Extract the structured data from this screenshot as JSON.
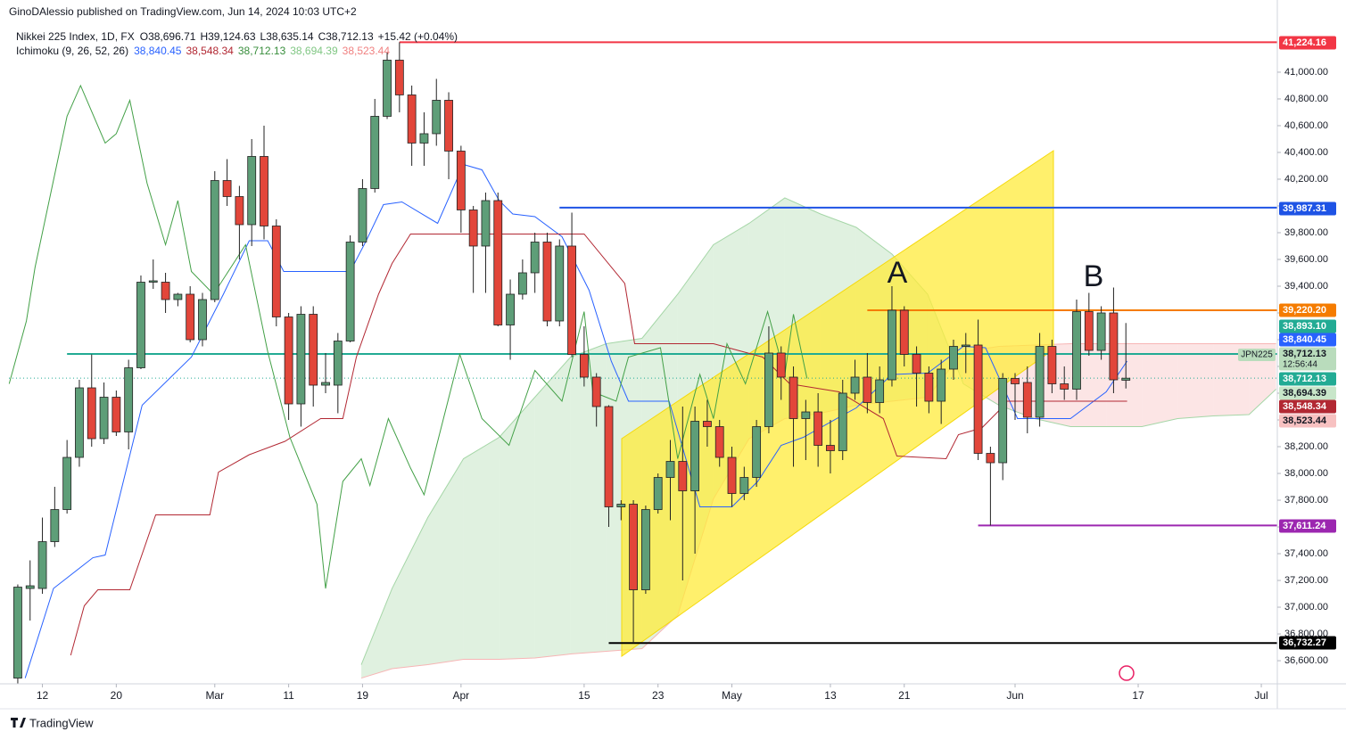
{
  "header": {
    "author": "GinoDAlessio published on TradingView.com, Jun 14, 2024 10:03 UTC+2"
  },
  "footer": "TradingView",
  "chart_data": {
    "type": "candlestick",
    "title": "Nikkei 225 Index, 1D, FX",
    "legend_values": [
      "O38,696.71",
      "H39,124.63",
      "L38,635.14",
      "C38,712.13",
      "+15.42 (+0.04%)"
    ],
    "indicator": {
      "title": "Ichimoku (9, 26, 52, 26)",
      "values": [
        {
          "label": "38,840.45",
          "color": "#2962ff"
        },
        {
          "label": "38,548.34",
          "color": "#b22833"
        },
        {
          "label": "38,712.13",
          "color": "#388e3c"
        },
        {
          "label": "38,694.39",
          "color": "#81c784"
        },
        {
          "label": "38,523.44",
          "color": "#f08080"
        }
      ]
    },
    "up_color": "#5e9e78",
    "down_color": "#e2463a",
    "open": [
      36470,
      37140,
      37140,
      37490,
      37730,
      38120,
      38640,
      38260,
      38570,
      38310,
      38790,
      39430,
      39430,
      39300,
      39340,
      39000,
      39300,
      40190,
      40070,
      39860,
      40370,
      39850,
      39170,
      38520,
      39190,
      38660,
      38660,
      38990,
      39730,
      40130,
      40670,
      41090,
      40830,
      40470,
      40540,
      40790,
      40410,
      39970,
      39700,
      40040,
      39110,
      39340,
      39500,
      39730,
      39140,
      39700,
      38890,
      38720,
      38500,
      37750,
      37770,
      37130,
      37730,
      37970,
      38090,
      37870,
      38390,
      38350,
      38120,
      37850,
      37970,
      38350,
      38900,
      38720,
      38410,
      38460,
      38210,
      38170,
      38600,
      38720,
      38530,
      38700,
      39220,
      38890,
      38750,
      38540,
      38780,
      38950,
      38960,
      38150,
      38080,
      38710,
      38680,
      38420,
      38950,
      38670,
      38630,
      39210,
      38920,
      39200,
      38696.71
    ],
    "high": [
      37170,
      37350,
      37670,
      37900,
      38250,
      38700,
      38890,
      38680,
      38620,
      38850,
      39480,
      39600,
      39500,
      39350,
      39400,
      39350,
      40260,
      40350,
      40150,
      40500,
      40600,
      39900,
      39200,
      39250,
      39250,
      38900,
      39050,
      39780,
      40200,
      40800,
      41150,
      41224.16,
      40900,
      40700,
      40950,
      40850,
      40450,
      40000,
      40100,
      40100,
      39450,
      39600,
      39800,
      39800,
      39750,
      39950,
      39100,
      38750,
      38510,
      37800,
      37800,
      37760,
      38000,
      38250,
      38500,
      38500,
      38550,
      38400,
      38200,
      38050,
      38400,
      39100,
      38950,
      38800,
      38550,
      38600,
      38400,
      38700,
      38850,
      38900,
      38800,
      39400,
      39250,
      38950,
      38800,
      38850,
      39000,
      39050,
      39150,
      38200,
      38750,
      38750,
      38800,
      39050,
      39000,
      38800,
      39300,
      39350,
      39250,
      39390,
      39124.63
    ],
    "low": [
      36430,
      36900,
      37100,
      37450,
      37700,
      38050,
      38200,
      38220,
      38280,
      38180,
      38780,
      39380,
      39200,
      39250,
      38980,
      38950,
      39280,
      40000,
      39600,
      39700,
      39750,
      39100,
      38400,
      38350,
      38500,
      38600,
      38450,
      38980,
      39700,
      40100,
      40650,
      40700,
      40300,
      40300,
      40450,
      40200,
      39800,
      39350,
      39350,
      39100,
      38850,
      39300,
      39350,
      39100,
      39100,
      38870,
      38650,
      38350,
      37600,
      37650,
      36732.27,
      37100,
      37700,
      37650,
      37200,
      37400,
      38200,
      38050,
      37750,
      37800,
      37900,
      38300,
      38550,
      38050,
      38100,
      38050,
      38000,
      38100,
      38550,
      38450,
      38450,
      38650,
      38800,
      38500,
      38450,
      38370,
      38700,
      38750,
      38100,
      37611.24,
      37950,
      38400,
      38300,
      38350,
      38600,
      38550,
      38550,
      38880,
      38850,
      38600,
      38635.14
    ],
    "close": [
      37150,
      37160,
      37490,
      37730,
      38120,
      38640,
      38260,
      38570,
      38310,
      38790,
      39430,
      39440,
      39300,
      39340,
      39000,
      39300,
      40190,
      40070,
      39860,
      40370,
      39850,
      39170,
      38520,
      39190,
      38660,
      38680,
      38990,
      39730,
      40130,
      40670,
      41090,
      40830,
      40470,
      40540,
      40790,
      40410,
      39970,
      39700,
      40040,
      39110,
      39340,
      39500,
      39730,
      39140,
      39700,
      38890,
      38720,
      38500,
      37750,
      37770,
      37130,
      37730,
      37970,
      38090,
      37870,
      38390,
      38350,
      38120,
      37850,
      37970,
      38350,
      38900,
      38720,
      38410,
      38460,
      38210,
      38170,
      38600,
      38720,
      38530,
      38700,
      39220,
      38890,
      38750,
      38540,
      38780,
      38950,
      38960,
      38150,
      38080,
      38710,
      38670,
      38420,
      38950,
      38670,
      38630,
      39210,
      38920,
      39200,
      38700,
      38712.13
    ],
    "lines": [
      {
        "color": "#2962ff",
        "x": [
          0.6,
          2.9,
          6.1,
          7.1,
          10.1,
          14.1,
          16.7,
          18.8,
          20.3,
          21.6,
          23.2,
          27.0,
          28.3,
          29.7,
          31.2,
          34.1,
          36.2,
          37.7,
          39.1,
          40.2,
          42.0,
          44.2,
          46.4,
          48.2,
          49.6,
          52.9,
          55.4,
          58.0,
          60.1,
          62.0,
          63.8,
          66.7,
          68.1,
          71.0,
          73.9,
          76.8,
          78.6,
          81.2,
          85.5,
          88.4,
          90.1
        ],
        "values": [
          36470,
          37140,
          37370,
          37390,
          38510,
          38870,
          39340,
          39740,
          39740,
          39510,
          39510,
          39510,
          39740,
          40010,
          40030,
          39870,
          40310,
          40270,
          40040,
          39940,
          39920,
          39770,
          39370,
          38840,
          38540,
          38540,
          37750,
          37750,
          37940,
          38210,
          38270,
          38420,
          38490,
          38740,
          38750,
          38950,
          38940,
          38410,
          38410,
          38610,
          38840
        ]
      },
      {
        "color": "#b22833",
        "x": [
          4.3,
          5.4,
          6.5,
          9.1,
          11.2,
          15.6,
          16.3,
          18.8,
          21.7,
          24.6,
          26.4,
          27.5,
          29.3,
          30.4,
          31.9,
          46.0,
          49.3,
          50.1,
          56.5,
          60.5,
          62.7,
          66.7,
          70.3,
          71.4,
          75.4,
          76.4,
          78.3,
          79.7,
          80.1,
          90.1
        ],
        "values": [
          36640,
          37010,
          37130,
          37130,
          37690,
          37690,
          38010,
          38140,
          38240,
          38410,
          38410,
          38870,
          39340,
          39570,
          39790,
          39790,
          39420,
          38970,
          38970,
          38870,
          38670,
          38610,
          38410,
          38130,
          38110,
          38290,
          38340,
          38470,
          38540,
          38540
        ]
      },
      {
        "color": "#43a047",
        "x": [
          -0.7,
          0.7,
          1.4,
          4.0,
          5.1,
          7.1,
          8.0,
          9.1,
          10.5,
          12.0,
          13.0,
          14.1,
          15.9,
          18.5,
          20.3,
          22.1,
          24.3,
          25.0,
          26.4,
          27.9,
          28.6,
          30.1,
          31.9,
          33.0,
          35.9,
          37.7,
          39.9,
          42.0,
          44.2,
          46.0,
          46.7,
          48.6,
          49.6,
          52.2,
          53.6,
          55.4,
          56.5,
          57.6,
          59.1,
          60.9,
          62.3,
          63.0,
          64.1
        ],
        "values": [
          38670,
          39140,
          39540,
          40670,
          40900,
          40470,
          40540,
          40790,
          40170,
          39710,
          40040,
          39510,
          39340,
          39710,
          38910,
          38270,
          37770,
          37140,
          37940,
          38110,
          37910,
          38410,
          38040,
          37840,
          38890,
          38410,
          38210,
          38770,
          38540,
          39210,
          38610,
          38540,
          38870,
          38940,
          38110,
          38740,
          38410,
          38970,
          38670,
          39210,
          38740,
          39190,
          38710
        ]
      }
    ],
    "cloud": {
      "up_color": "#a5d6a7",
      "down_color": "#f7b5b5",
      "x": [
        27.9,
        30.4,
        33.3,
        36.2,
        39.1,
        42.0,
        44.9,
        47.8,
        50.7,
        53.6,
        56.5,
        59.4,
        62.3,
        65.2,
        68.1,
        71.0,
        73.9,
        76.8,
        79.7,
        82.6,
        85.5,
        88.4,
        91.3,
        94.2,
        97.1,
        100.0,
        102.2
      ],
      "span_a": [
        36570,
        37140,
        37670,
        38110,
        38270,
        38570,
        38870,
        38970,
        39010,
        39340,
        39710,
        39870,
        40060,
        39940,
        39840,
        39640,
        39340,
        38670,
        38510,
        38410,
        38350,
        38350,
        38350,
        38410,
        38430,
        38440,
        38630
      ],
      "span_b": [
        36470,
        36540,
        36570,
        36610,
        36610,
        36620,
        36650,
        36670,
        36690,
        36940,
        37810,
        38260,
        38410,
        38450,
        38510,
        38540,
        38570,
        38910,
        38950,
        38960,
        38970,
        38970,
        38970,
        38970,
        38970,
        38970,
        38970
      ]
    },
    "xlim": [
      -0.72,
      102.3
    ],
    "xticks": [
      {
        "value": 2,
        "label": "12"
      },
      {
        "value": 8,
        "label": "20"
      },
      {
        "value": 16,
        "label": "Mar"
      },
      {
        "value": 22,
        "label": "11"
      },
      {
        "value": 28,
        "label": "19"
      },
      {
        "value": 36,
        "label": "Apr"
      },
      {
        "value": 46,
        "label": "15"
      },
      {
        "value": 52,
        "label": "23"
      },
      {
        "value": 58,
        "label": "May"
      },
      {
        "value": 66,
        "label": "13"
      },
      {
        "value": 72,
        "label": "21"
      },
      {
        "value": 81,
        "label": "Jun"
      },
      {
        "value": 91,
        "label": "17"
      },
      {
        "value": 101,
        "label": "Jul"
      }
    ],
    "ylim": [
      36427,
      41353
    ],
    "yticks": [
      {
        "value": 36600,
        "label": "36,600.00"
      },
      {
        "value": 36800,
        "label": "36,800.00"
      },
      {
        "value": 37000,
        "label": "37,000.00"
      },
      {
        "value": 37200,
        "label": "37,200.00"
      },
      {
        "value": 37400,
        "label": "37,400.00"
      },
      {
        "value": 37600,
        "label": "37,600.00"
      },
      {
        "value": 37800,
        "label": "37,800.00"
      },
      {
        "value": 38000,
        "label": "38,000.00"
      },
      {
        "value": 38200,
        "label": "38,200.00"
      },
      {
        "value": 38400,
        "label": "38,400.00"
      },
      {
        "value": 38600,
        "label": "38,600.00"
      },
      {
        "value": 38800,
        "label": "38,800.00"
      },
      {
        "value": 39000,
        "label": "39,000.00"
      },
      {
        "value": 39200,
        "label": "39,200.00"
      },
      {
        "value": 39400,
        "label": "39,400.00"
      },
      {
        "value": 39600,
        "label": "39,600.00"
      },
      {
        "value": 39800,
        "label": "39,800.00"
      },
      {
        "value": 40000,
        "label": "40,000.00"
      },
      {
        "value": 40200,
        "label": "40,200.00"
      },
      {
        "value": 40400,
        "label": "40,400.00"
      },
      {
        "value": 40600,
        "label": "40,600.00"
      },
      {
        "value": 40800,
        "label": "40,800.00"
      },
      {
        "value": 41000,
        "label": "41,000.00"
      }
    ],
    "price_labels": [
      {
        "value": 41224.16,
        "label": "41,224.16",
        "color": "#f23645"
      },
      {
        "value": 39987.31,
        "label": "39,987.31",
        "color": "#1e53e5"
      },
      {
        "value": 39220.2,
        "label": "39,220.20",
        "color": "#f57c00"
      },
      {
        "value": 38893.1,
        "label": "38,893.10",
        "color": "#22ab94"
      },
      {
        "value": 38840.45,
        "label": "38,840.45",
        "color": "#2962ff"
      },
      {
        "value": 38712.13,
        "label": "38,712.13",
        "color": "#b9dcbc"
      },
      {
        "value": 38712.13,
        "label": "38,712.13",
        "color": "#22ab94"
      },
      {
        "value": 38694.39,
        "label": "38,694.39",
        "color": "#c8e6c9"
      },
      {
        "value": 38548.34,
        "label": "38,548.34",
        "color": "#b22833"
      },
      {
        "value": 38523.44,
        "label": "38,523.44",
        "color": "#f7c1c1"
      },
      {
        "value": 37611.24,
        "label": "37,611.24",
        "color": "#9c27b0"
      },
      {
        "value": 36732.27,
        "label": "36,732.27",
        "color": "#000000"
      }
    ],
    "symbol_label": "JPN225",
    "countdown": "12:56:44",
    "annotations": [
      {
        "text": "A"
      },
      {
        "text": "B"
      }
    ]
  }
}
